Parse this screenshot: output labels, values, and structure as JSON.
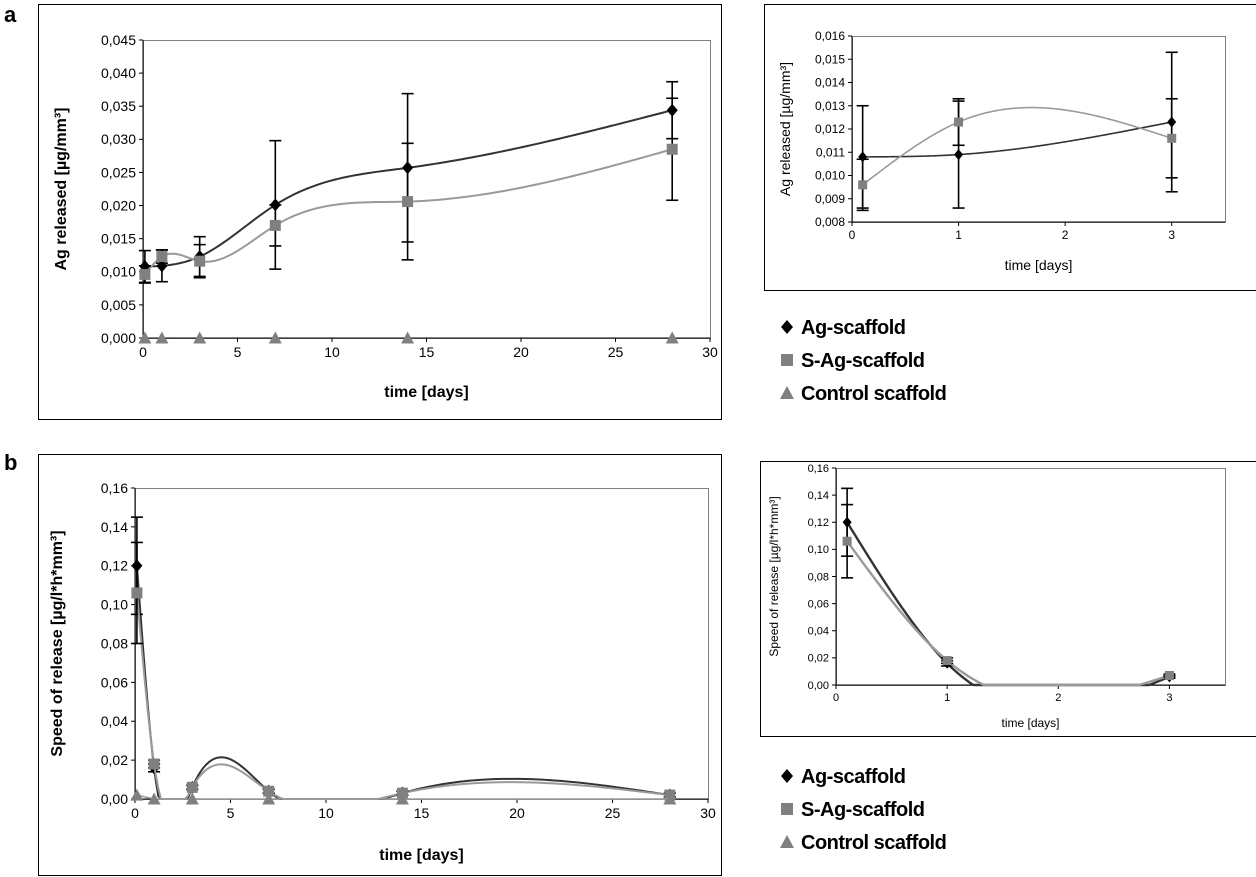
{
  "panel_labels": {
    "a": "a",
    "b": "b"
  },
  "legend": {
    "items": [
      {
        "label": "Ag-scaffold",
        "marker": "diamond",
        "color": "#000000"
      },
      {
        "label": "S-Ag-scaffold",
        "marker": "square",
        "color": "#808080"
      },
      {
        "label": "Control scaffold",
        "marker": "triangle",
        "color": "#808080"
      }
    ]
  },
  "chart_data": [
    {
      "id": "a-main",
      "type": "scatter",
      "xlabel": "time [days]",
      "ylabel": "Ag released [µg/mm³]",
      "xlim": [
        0,
        30
      ],
      "ylim": [
        0,
        0.045
      ],
      "xticks": [
        "0",
        "5",
        "10",
        "15",
        "20",
        "25",
        "30"
      ],
      "yticks": [
        "0,000",
        "0,005",
        "0,010",
        "0,015",
        "0,020",
        "0,025",
        "0,030",
        "0,035",
        "0,040",
        "0,045"
      ],
      "series": [
        {
          "name": "Ag-scaffold",
          "marker": "diamond",
          "color": "#000000",
          "x": [
            0.1,
            1,
            3,
            7,
            14,
            28
          ],
          "y": [
            0.0108,
            0.0109,
            0.0123,
            0.0201,
            0.0257,
            0.0344
          ],
          "err": [
            0.0024,
            0.0024,
            0.003,
            0.0097,
            0.0112,
            0.0043
          ]
        },
        {
          "name": "S-Ag-scaffold",
          "marker": "square",
          "color": "#808080",
          "x": [
            0.1,
            1,
            3,
            7,
            14,
            28
          ],
          "y": [
            0.0096,
            0.0123,
            0.0116,
            0.017,
            0.0206,
            0.0285
          ],
          "err": [
            0.0013,
            0.001,
            0.0025,
            0.0031,
            0.0088,
            0.0077
          ]
        },
        {
          "name": "Control scaffold",
          "marker": "triangle",
          "color": "#808080",
          "x": [
            0.1,
            1,
            3,
            7,
            14,
            28
          ],
          "y": [
            0,
            0,
            0,
            0,
            0,
            0
          ],
          "err": [
            0,
            0,
            0,
            0,
            0,
            0
          ]
        }
      ]
    },
    {
      "id": "a-inset",
      "type": "scatter",
      "xlabel": "time [days]",
      "ylabel": "Ag released [µg/mm³]",
      "xlim": [
        0,
        3.5
      ],
      "ylim": [
        0.008,
        0.016
      ],
      "xticks": [
        "0",
        "1",
        "2",
        "3"
      ],
      "yticks": [
        "0,008",
        "0,009",
        "0,010",
        "0,011",
        "0,012",
        "0,013",
        "0,014",
        "0,015",
        "0,016"
      ],
      "series": [
        {
          "name": "Ag-scaffold",
          "marker": "diamond",
          "color": "#000000",
          "x": [
            0.1,
            1,
            3
          ],
          "y": [
            0.0108,
            0.0109,
            0.0123
          ],
          "err": [
            0.0022,
            0.0023,
            0.003
          ]
        },
        {
          "name": "S-Ag-scaffold",
          "marker": "square",
          "color": "#808080",
          "x": [
            0.1,
            1,
            3
          ],
          "y": [
            0.0096,
            0.0123,
            0.0116
          ],
          "err": [
            0.0011,
            0.001,
            0.0017
          ]
        }
      ]
    },
    {
      "id": "b-main",
      "type": "line",
      "xlabel": "time [days]",
      "ylabel": "Speed of release [µg/l*h*mm³]",
      "xlim": [
        0,
        30
      ],
      "ylim": [
        0,
        0.16
      ],
      "xticks": [
        "0",
        "5",
        "10",
        "15",
        "20",
        "25",
        "30"
      ],
      "yticks": [
        "0,00",
        "0,02",
        "0,04",
        "0,06",
        "0,08",
        "0,10",
        "0,12",
        "0,14",
        "0,16"
      ],
      "series": [
        {
          "name": "Ag-scaffold",
          "marker": "diamond",
          "color": "#000000",
          "x": [
            0.1,
            1,
            3,
            7,
            14,
            28
          ],
          "y": [
            0.12,
            0.016,
            0.006,
            0.004,
            0.003,
            0.002
          ],
          "err": [
            0.025,
            0.002,
            0.001,
            0.001,
            0.001,
            0.001
          ]
        },
        {
          "name": "S-Ag-scaffold",
          "marker": "square",
          "color": "#808080",
          "x": [
            0.1,
            1,
            3,
            7,
            14,
            28
          ],
          "y": [
            0.106,
            0.018,
            0.006,
            0.004,
            0.003,
            0.002
          ],
          "err": [
            0.026,
            0.002,
            0.001,
            0.001,
            0.001,
            0.001
          ]
        },
        {
          "name": "Control scaffold",
          "marker": "triangle",
          "color": "#808080",
          "x": [
            0.1,
            1,
            3,
            7,
            14,
            28
          ],
          "y": [
            0.002,
            0,
            0,
            0,
            0,
            0
          ],
          "err": [
            0,
            0,
            0,
            0,
            0,
            0
          ]
        }
      ]
    },
    {
      "id": "b-inset",
      "type": "line",
      "xlabel": "time [days]",
      "ylabel": "Speed of release [µg/l*h*mm³]",
      "xlim": [
        0,
        3.5
      ],
      "ylim": [
        0,
        0.16
      ],
      "xticks": [
        "0",
        "1",
        "2",
        "3"
      ],
      "yticks": [
        "0,00",
        "0,02",
        "0,04",
        "0,06",
        "0,08",
        "0,10",
        "0,12",
        "0,14",
        "0,16"
      ],
      "series": [
        {
          "name": "Ag-scaffold",
          "marker": "diamond",
          "color": "#000000",
          "x": [
            0.1,
            1,
            3
          ],
          "y": [
            0.12,
            0.016,
            0.006
          ],
          "err": [
            0.025,
            0.002,
            0.001
          ]
        },
        {
          "name": "S-Ag-scaffold",
          "marker": "square",
          "color": "#808080",
          "x": [
            0.1,
            1,
            3
          ],
          "y": [
            0.106,
            0.018,
            0.007
          ],
          "err": [
            0.027,
            0.002,
            0.001
          ]
        }
      ]
    }
  ]
}
